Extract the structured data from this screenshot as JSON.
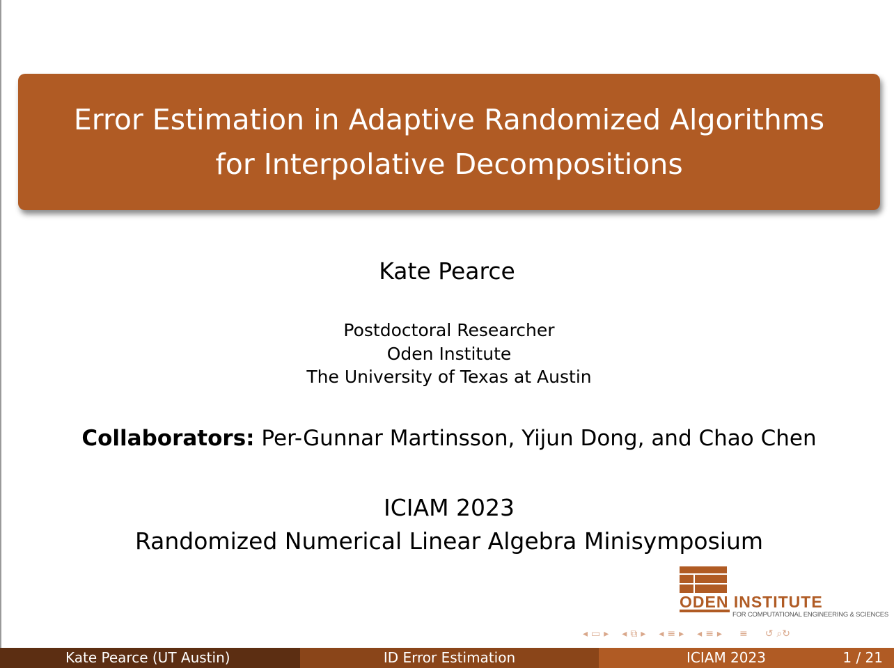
{
  "title": {
    "line1": "Error Estimation in Adaptive Randomized Algorithms",
    "line2": "for Interpolative Decompositions"
  },
  "author": "Kate Pearce",
  "affiliation": {
    "position": "Postdoctoral Researcher",
    "institute": "Oden Institute",
    "university": "The University of Texas at Austin"
  },
  "collaborators": {
    "label": "Collaborators:",
    "names": "Per-Gunnar Martinsson, Yijun Dong, and Chao Chen"
  },
  "conference": {
    "name": "ICIAM 2023",
    "session": "Randomized Numerical Linear Algebra Minisymposium"
  },
  "logo": {
    "word1": "ODEN",
    "word2": "INSTITUTE",
    "subtitle": "FOR COMPUTATIONAL ENGINEERING & SCIENCES"
  },
  "navigation": {
    "icons": [
      "nav-left-arrow",
      "frame-icon",
      "nav-right-arrow",
      "subsection-icon",
      "section-icon",
      "align-icon",
      "search-icon"
    ]
  },
  "footer": {
    "author": "Kate Pearce  (UT Austin)",
    "short_title": "ID Error Estimation",
    "conference": "ICIAM 2023",
    "page": "1 / 21"
  },
  "colors": {
    "accent": "#b05b24",
    "footer_dark": "#5c2e12",
    "footer_mid": "#8a4519"
  }
}
